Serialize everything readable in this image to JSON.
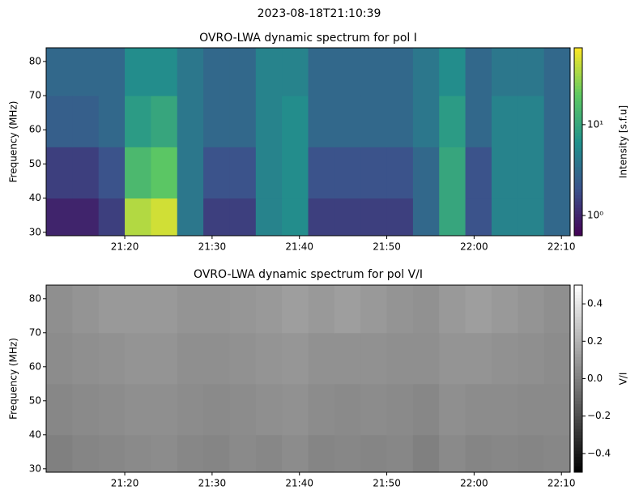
{
  "title": "2023-08-18T21:10:39",
  "chart_data": [
    {
      "type": "heatmap",
      "title": "OVRO-LWA dynamic spectrum for pol I",
      "ylabel": "Frequency (MHz)",
      "colorbar_label": "Intensity [s.f.u]",
      "colormap": "viridis",
      "color_log": true,
      "x": [
        "21:11",
        "21:14",
        "21:17",
        "21:20",
        "21:23",
        "21:26",
        "21:29",
        "21:32",
        "21:35",
        "21:38",
        "21:41",
        "21:44",
        "21:47",
        "21:50",
        "21:53",
        "21:56",
        "21:59",
        "22:02",
        "22:05",
        "22:08",
        "22:11"
      ],
      "y": [
        29,
        40,
        55,
        70,
        84
      ],
      "values": [
        [
          1,
          1,
          1.5,
          40,
          50,
          4,
          1.5,
          1.5,
          5,
          6,
          1.5,
          1.5,
          1.5,
          1.5,
          3,
          10,
          2,
          5,
          5,
          3
        ],
        [
          1.5,
          1.5,
          2,
          15,
          20,
          4,
          2,
          2,
          5,
          6,
          2,
          2,
          2,
          2,
          3,
          10,
          2,
          5,
          5,
          3
        ],
        [
          2.5,
          2.5,
          3,
          8,
          10,
          4,
          3,
          3,
          5,
          6,
          3,
          3,
          3,
          3,
          4,
          8,
          3,
          5,
          5,
          3
        ],
        [
          3,
          3,
          3,
          6,
          6,
          4,
          3,
          3,
          5,
          5,
          3,
          3,
          3,
          3,
          4,
          6,
          3,
          4,
          4,
          3
        ]
      ],
      "xlim": [
        "21:11",
        "22:11"
      ],
      "xticks": [
        "21:20",
        "21:30",
        "21:40",
        "21:50",
        "22:00",
        "22:10"
      ],
      "ylim": [
        29,
        84
      ],
      "yticks": [
        30,
        40,
        50,
        60,
        70,
        80
      ],
      "clim": [
        0.6,
        70
      ],
      "cticks": [
        {
          "value": 1,
          "label": "10⁰"
        },
        {
          "value": 10,
          "label": "10¹"
        }
      ]
    },
    {
      "type": "heatmap",
      "title": "OVRO-LWA dynamic spectrum for pol V/I",
      "ylabel": "Frequency (MHz)",
      "colorbar_label": "V/I",
      "colormap": "gray",
      "color_log": false,
      "x": [
        "21:11",
        "21:14",
        "21:17",
        "21:20",
        "21:23",
        "21:26",
        "21:29",
        "21:32",
        "21:35",
        "21:38",
        "21:41",
        "21:44",
        "21:47",
        "21:50",
        "21:53",
        "21:56",
        "21:59",
        "22:02",
        "22:05",
        "22:08",
        "22:11"
      ],
      "y": [
        29,
        40,
        55,
        70,
        84
      ],
      "values": [
        [
          0,
          0.02,
          0.03,
          0.04,
          0.05,
          0.03,
          0.02,
          0.04,
          0.03,
          0.05,
          0.02,
          0.03,
          0.02,
          0.03,
          0,
          0.04,
          0.02,
          0.03,
          0.02,
          0.03
        ],
        [
          0.03,
          0.04,
          0.05,
          0.06,
          0.06,
          0.05,
          0.04,
          0.05,
          0.06,
          0.07,
          0.05,
          0.04,
          0.05,
          0.04,
          0.03,
          0.06,
          0.05,
          0.05,
          0.04,
          0.04
        ],
        [
          0.05,
          0.06,
          0.07,
          0.08,
          0.08,
          0.06,
          0.06,
          0.07,
          0.08,
          0.09,
          0.07,
          0.07,
          0.07,
          0.06,
          0.06,
          0.08,
          0.08,
          0.07,
          0.06,
          0.05
        ],
        [
          0.06,
          0.08,
          0.1,
          0.1,
          0.1,
          0.08,
          0.08,
          0.09,
          0.1,
          0.12,
          0.1,
          0.12,
          0.1,
          0.08,
          0.07,
          0.1,
          0.12,
          0.1,
          0.08,
          0.06
        ]
      ],
      "xlim": [
        "21:11",
        "22:11"
      ],
      "xticks": [
        "21:20",
        "21:30",
        "21:40",
        "21:50",
        "22:00",
        "22:10"
      ],
      "ylim": [
        29,
        84
      ],
      "yticks": [
        30,
        40,
        50,
        60,
        70,
        80
      ],
      "clim": [
        -0.5,
        0.5
      ],
      "cticks": [
        {
          "value": -0.4,
          "label": "−0.4"
        },
        {
          "value": -0.2,
          "label": "−0.2"
        },
        {
          "value": 0,
          "label": "0.0"
        },
        0.2,
        0.4
      ]
    }
  ]
}
